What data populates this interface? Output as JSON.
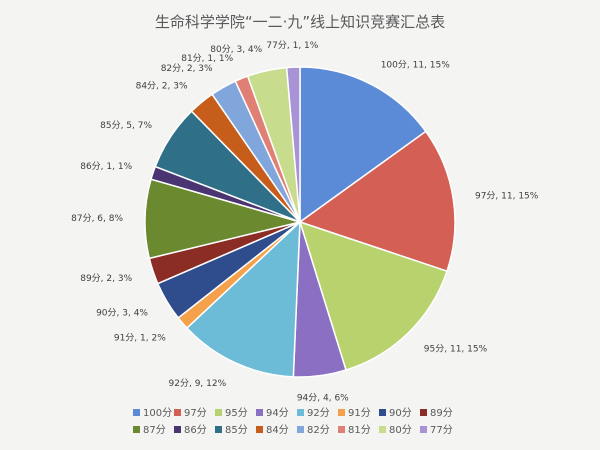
{
  "chart_data": {
    "type": "pie",
    "title": "生命科学学院“一二·九”线上知识竞赛汇总表",
    "start_angle": "12 o'clock",
    "direction": "clockwise",
    "legend_position": "bottom",
    "slices": [
      {
        "label": "100分",
        "value": 11,
        "percent": "15%",
        "color": "#5b8bd6"
      },
      {
        "label": "97分",
        "value": 11,
        "percent": "15%",
        "color": "#d45f55"
      },
      {
        "label": "95分",
        "value": 11,
        "percent": "15%",
        "color": "#b8d36e"
      },
      {
        "label": "94分",
        "value": 4,
        "percent": "6%",
        "color": "#8b6fc2"
      },
      {
        "label": "92分",
        "value": 9,
        "percent": "12%",
        "color": "#6cbcd8"
      },
      {
        "label": "91分",
        "value": 1,
        "percent": "2%",
        "color": "#f5a04a"
      },
      {
        "label": "90分",
        "value": 3,
        "percent": "4%",
        "color": "#2f4d8c"
      },
      {
        "label": "89分",
        "value": 2,
        "percent": "3%",
        "color": "#8b2c25"
      },
      {
        "label": "87分",
        "value": 6,
        "percent": "8%",
        "color": "#6b8a30"
      },
      {
        "label": "86分",
        "value": 1,
        "percent": "1%",
        "color": "#4a3472"
      },
      {
        "label": "85分",
        "value": 5,
        "percent": "7%",
        "color": "#2f7088"
      },
      {
        "label": "84分",
        "value": 2,
        "percent": "3%",
        "color": "#c75d1a"
      },
      {
        "label": "82分",
        "value": 2,
        "percent": "3%",
        "color": "#80a6dc"
      },
      {
        "label": "81分",
        "value": 1,
        "percent": "1%",
        "color": "#e08075"
      },
      {
        "label": "80分",
        "value": 3,
        "percent": "4%",
        "color": "#c8dc8e"
      },
      {
        "label": "77分",
        "value": 1,
        "percent": "1%",
        "color": "#a893d6"
      }
    ]
  }
}
